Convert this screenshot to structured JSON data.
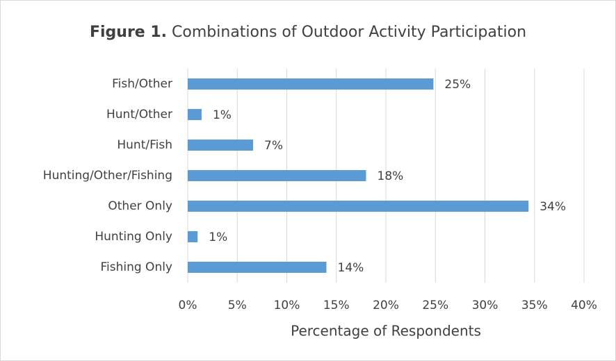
{
  "chart_data": {
    "type": "bar",
    "orientation": "horizontal",
    "title_bold": "Figure 1.",
    "title": "Combinations of Outdoor Activity Participation",
    "x_label": "Percentage of Respondents",
    "categories": [
      "Fish/Other",
      "Hunt/Other",
      "Hunt/Fish",
      "Hunting/Other/Fishing",
      "Other Only",
      "Hunting Only",
      "Fishing Only"
    ],
    "values": [
      24.8,
      1.4,
      6.6,
      18.0,
      34.4,
      1.0,
      14.0
    ],
    "value_labels": [
      "25%",
      "1%",
      "7%",
      "18%",
      "34%",
      "1%",
      "14%"
    ],
    "color": "#5b9bd5",
    "xlim": [
      0,
      40
    ],
    "xticks": [
      {
        "value": 0,
        "label": "0%"
      },
      {
        "value": 5,
        "label": "5%"
      },
      {
        "value": 10,
        "label": "10%"
      },
      {
        "value": 15,
        "label": "15%"
      },
      {
        "value": 20,
        "label": "20%"
      },
      {
        "value": 25,
        "label": "25%"
      },
      {
        "value": 30,
        "label": "30%"
      },
      {
        "value": 35,
        "label": "35%"
      },
      {
        "value": 40,
        "label": "40%"
      }
    ],
    "grid": true
  }
}
